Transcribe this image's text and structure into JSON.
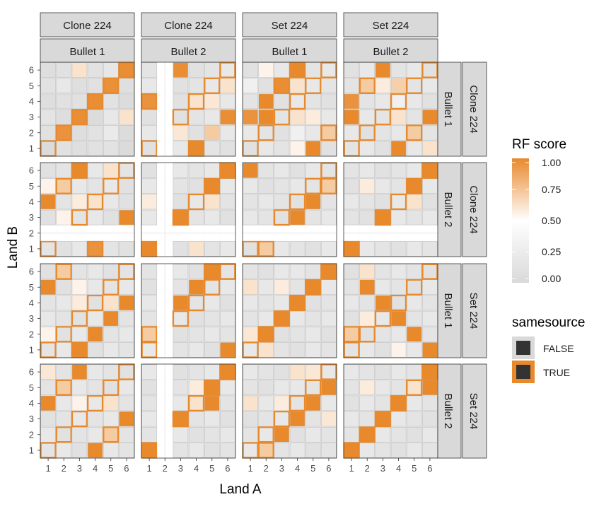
{
  "chart_data": {
    "type": "heatmap",
    "xlabel": "Land A",
    "ylabel": "Land B",
    "x_ticks": [
      "1",
      "2",
      "3",
      "4",
      "5",
      "6"
    ],
    "y_ticks": [
      "1",
      "2",
      "3",
      "4",
      "5",
      "6"
    ],
    "col_strips": [
      {
        "top": "Clone 224",
        "bottom": "Bullet 1"
      },
      {
        "top": "Clone 224",
        "bottom": "Bullet 2"
      },
      {
        "top": "Set 224",
        "bottom": "Bullet 1"
      },
      {
        "top": "Set 224",
        "bottom": "Bullet 2"
      }
    ],
    "row_strips": [
      {
        "inner": "Bullet 1",
        "outer": "Clone 224"
      },
      {
        "inner": "Bullet 2",
        "outer": "Clone 224"
      },
      {
        "inner": "Bullet 1",
        "outer": "Set 224"
      },
      {
        "inner": "Bullet 2",
        "outer": "Set 224"
      }
    ],
    "grid": true,
    "colors": {
      "low": "#d9d9d9",
      "mid": "#ffffff",
      "high": "#e8892c",
      "panel_bg": "#ebebeb",
      "strip_bg": "#d9d9d9",
      "true_outline": "#e8892c",
      "false_outline": "#bdbdbd"
    },
    "legend": {
      "position": "right",
      "fill_title": "RF score",
      "fill_labels": [
        "1.00",
        "0.75",
        "0.50",
        "0.25",
        "0.00"
      ],
      "fill_values": [
        1.0,
        0.75,
        0.5,
        0.25,
        0.0
      ],
      "samesource_title": "samesource",
      "samesource_labels": [
        "FALSE",
        "TRUE"
      ]
    },
    "panels": [
      [
        {
          "missing_x": [],
          "missing_y": [],
          "scores": [
            [
              0.02,
              0.1,
              0.08,
              0.1,
              0.12,
              0.02
            ],
            [
              0.1,
              0.96,
              0.06,
              0.12,
              0.22,
              0.04
            ],
            [
              0.14,
              0.06,
              0.98,
              0.04,
              0.2,
              0.62
            ],
            [
              0.06,
              0.1,
              0.1,
              0.98,
              0.12,
              0.04
            ],
            [
              0.12,
              0.2,
              0.08,
              0.1,
              0.97,
              0.08
            ],
            [
              0.06,
              0.1,
              0.62,
              0.12,
              0.18,
              0.98
            ]
          ],
          "same": [
            [
              1,
              1
            ],
            [
              2,
              2
            ],
            [
              3,
              3
            ],
            [
              4,
              4
            ],
            [
              5,
              5
            ],
            [
              6,
              6
            ]
          ]
        },
        {
          "missing_x": [
            2
          ],
          "missing_y": [],
          "scores": [
            [
              0.1,
              0,
              0.2,
              1.0,
              0.15,
              0.1
            ],
            [
              0.2,
              0,
              0.6,
              0.1,
              0.72,
              0.2
            ],
            [
              0.1,
              0,
              0.1,
              0.15,
              0.2,
              0.98
            ],
            [
              0.96,
              0,
              0.1,
              0.62,
              0.6,
              0.2
            ],
            [
              0.2,
              0,
              0.1,
              0.15,
              0.2,
              0.62
            ],
            [
              0.15,
              0,
              0.98,
              0.1,
              0.15,
              0.2
            ]
          ],
          "same": [
            [
              1,
              4
            ],
            [
              4,
              1
            ]
          ]
        },
        {
          "missing_x": [],
          "missing_y": [],
          "scores": [
            [
              0.1,
              0.2,
              0.15,
              0.55,
              1.0,
              0.1
            ],
            [
              0.2,
              0.15,
              0.1,
              0.3,
              0.2,
              0.72
            ],
            [
              0.96,
              1.0,
              0.15,
              0.62,
              0.58,
              0.2
            ],
            [
              0.15,
              1.0,
              0.1,
              0.2,
              0.15,
              0.1
            ],
            [
              0.3,
              0.1,
              0.98,
              0.62,
              0.2,
              0.15
            ],
            [
              0.1,
              0.55,
              0.2,
              1.0,
              0.15,
              0.2
            ]
          ],
          "same": [
            [
              3,
              5
            ],
            [
              6,
              2
            ],
            [
              4,
              6
            ]
          ]
        },
        {
          "missing_x": [],
          "missing_y": [],
          "scores": [
            [
              0.15,
              0.2,
              0.1,
              1.0,
              0.2,
              0.62
            ],
            [
              0.2,
              0.1,
              0.15,
              0.2,
              0.72,
              0.15
            ],
            [
              1.0,
              0.2,
              0.15,
              0.62,
              0.15,
              1.0
            ],
            [
              0.96,
              0.15,
              0.2,
              0.3,
              0.2,
              0.1
            ],
            [
              0.15,
              0.72,
              0.58,
              0.7,
              0.15,
              0.2
            ],
            [
              0.1,
              0.2,
              1.0,
              0.15,
              0.2,
              0.1
            ]
          ],
          "same": [
            [
              5,
              2
            ],
            [
              2,
              5
            ]
          ]
        }
      ],
      [
        {
          "missing_x": [],
          "missing_y": [
            2
          ],
          "scores": [
            [
              0.15,
              0.1,
              0.2,
              0.96,
              0.15,
              0.1
            ],
            [
              0,
              0,
              0,
              0,
              0,
              0
            ],
            [
              0.1,
              0.55,
              0.15,
              0.2,
              0.1,
              1.0
            ],
            [
              1.0,
              0.15,
              0.58,
              0.62,
              0.2,
              0.1
            ],
            [
              0.55,
              0.72,
              0.2,
              0.15,
              0.2,
              0.1
            ],
            [
              0.1,
              0.15,
              1.0,
              0.2,
              0.62,
              0.15
            ]
          ],
          "same": [
            [
              2,
              5
            ],
            [
              3,
              6
            ],
            [
              4,
              1
            ]
          ]
        },
        {
          "missing_x": [
            2
          ],
          "missing_y": [
            2
          ],
          "scores": [
            [
              1.0,
              0,
              0.1,
              0.62,
              0.15,
              0.2
            ],
            [
              0,
              0,
              0,
              0,
              0,
              0
            ],
            [
              0.2,
              0,
              1.0,
              0.15,
              0.2,
              0.1
            ],
            [
              0.58,
              0,
              0.1,
              0.2,
              0.62,
              0.15
            ],
            [
              0.2,
              0,
              0.15,
              0.1,
              1.0,
              0.2
            ],
            [
              0.1,
              0,
              0.2,
              0.15,
              0.2,
              1.0
            ]
          ],
          "same": []
        },
        {
          "missing_x": [],
          "missing_y": [
            2
          ],
          "scores": [
            [
              0.1,
              0.72,
              0.2,
              0.15,
              0.1,
              0.2
            ],
            [
              0,
              0,
              0,
              0,
              0,
              0
            ],
            [
              0.2,
              0.15,
              0.1,
              1.0,
              0.15,
              0.2
            ],
            [
              0.15,
              0.2,
              0.15,
              0.1,
              1.0,
              0.15
            ],
            [
              0.2,
              0.1,
              0.15,
              0.2,
              0.15,
              0.72
            ],
            [
              1.0,
              0.15,
              0.2,
              0.1,
              0.2,
              0.15
            ]
          ],
          "same": [
            [
              2,
              1
            ],
            [
              6,
              5
            ]
          ]
        },
        {
          "missing_x": [],
          "missing_y": [
            2
          ],
          "scores": [
            [
              1.0,
              0.2,
              0.15,
              0.1,
              0.2,
              0.15
            ],
            [
              0,
              0,
              0,
              0,
              0,
              0
            ],
            [
              0.15,
              0.1,
              1.0,
              0.2,
              0.15,
              0.2
            ],
            [
              0.2,
              0.15,
              0.1,
              0.2,
              0.62,
              0.1
            ],
            [
              0.1,
              0.58,
              0.2,
              0.15,
              1.0,
              0.2
            ],
            [
              0.15,
              0.2,
              0.1,
              0.15,
              0.2,
              1.0
            ]
          ],
          "same": []
        }
      ],
      [
        {
          "missing_x": [],
          "missing_y": [],
          "scores": [
            [
              0.15,
              0.2,
              1.0,
              0.1,
              0.2,
              0.15
            ],
            [
              0.55,
              0.1,
              0.2,
              1.0,
              0.15,
              0.2
            ],
            [
              0.2,
              0.15,
              0.1,
              0.2,
              1.0,
              0.15
            ],
            [
              0.15,
              0.2,
              0.58,
              0.1,
              0.62,
              1.0
            ],
            [
              1.0,
              0.1,
              0.55,
              0.2,
              0.15,
              0.2
            ],
            [
              0.1,
              0.72,
              0.15,
              0.2,
              0.1,
              0.15
            ]
          ],
          "same": [
            [
              2,
              6
            ],
            [
              3,
              1
            ]
          ]
        },
        {
          "missing_x": [
            2
          ],
          "missing_y": [],
          "scores": [
            [
              0.2,
              0,
              0.15,
              0.2,
              0.1,
              1.0
            ],
            [
              0.72,
              0,
              0.1,
              0.15,
              0.2,
              0.15
            ],
            [
              0.15,
              0,
              0.2,
              0.1,
              0.15,
              0.2
            ],
            [
              0.2,
              0,
              1.0,
              0.15,
              0.2,
              0.1
            ],
            [
              0.1,
              0,
              0.15,
              1.0,
              0.15,
              0.2
            ],
            [
              0.15,
              0,
              0.2,
              0.1,
              1.0,
              0.15
            ]
          ],
          "same": [
            [
              1,
              2
            ],
            [
              5,
              6
            ]
          ]
        },
        {
          "missing_x": [],
          "missing_y": [],
          "scores": [
            [
              0.2,
              0.62,
              0.15,
              0.1,
              0.2,
              0.15
            ],
            [
              0.6,
              1.0,
              0.1,
              0.15,
              0.2,
              0.1
            ],
            [
              0.15,
              0.2,
              1.0,
              0.2,
              0.15,
              0.2
            ],
            [
              0.2,
              0.15,
              0.2,
              1.0,
              0.1,
              0.15
            ],
            [
              0.62,
              0.2,
              0.58,
              0.15,
              1.0,
              0.2
            ],
            [
              0.15,
              0.1,
              0.2,
              0.2,
              0.15,
              1.0
            ]
          ],
          "same": []
        },
        {
          "missing_x": [],
          "missing_y": [],
          "scores": [
            [
              0.15,
              0.2,
              0.1,
              0.55,
              0.2,
              1.0
            ],
            [
              0.72,
              0.1,
              0.15,
              0.2,
              1.0,
              0.15
            ],
            [
              0.1,
              0.58,
              0.2,
              1.0,
              0.15,
              0.2
            ],
            [
              0.2,
              0.15,
              1.0,
              0.1,
              0.2,
              0.15
            ],
            [
              0.15,
              1.0,
              0.2,
              0.15,
              0.1,
              0.2
            ],
            [
              0.1,
              0.62,
              0.15,
              0.2,
              0.15,
              0.1
            ]
          ],
          "same": [
            [
              1,
              2
            ]
          ]
        }
      ],
      [
        {
          "missing_x": [],
          "missing_y": [],
          "scores": [
            [
              0.15,
              0.2,
              0.1,
              1.0,
              0.2,
              0.15
            ],
            [
              0.2,
              0.1,
              0.15,
              0.2,
              0.72,
              0.15
            ],
            [
              0.1,
              0.15,
              0.2,
              0.15,
              0.2,
              1.0
            ],
            [
              1.0,
              0.2,
              0.55,
              0.2,
              0.62,
              0.15
            ],
            [
              0.15,
              0.72,
              0.2,
              0.15,
              0.1,
              0.2
            ],
            [
              0.6,
              0.15,
              1.0,
              0.2,
              0.15,
              0.1
            ]
          ],
          "same": [
            [
              2,
              5
            ],
            [
              5,
              2
            ]
          ]
        },
        {
          "missing_x": [
            2
          ],
          "missing_y": [],
          "scores": [
            [
              1.0,
              0,
              0.15,
              0.2,
              0.1,
              0.15
            ],
            [
              0.15,
              0,
              0.2,
              0.1,
              0.15,
              0.2
            ],
            [
              0.2,
              0,
              1.0,
              0.15,
              0.2,
              0.1
            ],
            [
              0.15,
              0,
              0.2,
              0.62,
              1.0,
              0.15
            ],
            [
              0.1,
              0,
              0.15,
              0.58,
              1.0,
              0.2
            ],
            [
              0.2,
              0,
              0.1,
              0.15,
              0.2,
              1.0
            ]
          ],
          "same": []
        },
        {
          "missing_x": [],
          "missing_y": [],
          "scores": [
            [
              0.2,
              0.72,
              0.15,
              0.2,
              0.1,
              0.15
            ],
            [
              0.15,
              0.2,
              1.0,
              0.1,
              0.2,
              0.15
            ],
            [
              0.1,
              0.15,
              0.2,
              1.0,
              0.15,
              0.6
            ],
            [
              0.62,
              0.2,
              0.58,
              0.15,
              1.0,
              0.2
            ],
            [
              0.15,
              0.1,
              0.2,
              0.2,
              0.15,
              1.0
            ],
            [
              0.2,
              0.15,
              0.1,
              0.62,
              0.6,
              0.2
            ]
          ],
          "same": [
            [
              2,
              1
            ]
          ]
        },
        {
          "missing_x": [],
          "missing_y": [],
          "scores": [
            [
              1.0,
              0.2,
              0.15,
              0.1,
              0.2,
              0.15
            ],
            [
              0.15,
              1.0,
              0.2,
              0.15,
              0.1,
              0.2
            ],
            [
              0.2,
              0.15,
              1.0,
              0.2,
              0.15,
              0.1
            ],
            [
              0.1,
              0.2,
              0.15,
              1.0,
              0.2,
              0.15
            ],
            [
              0.15,
              0.58,
              0.2,
              0.15,
              0.62,
              1.0
            ],
            [
              0.2,
              0.15,
              0.1,
              0.2,
              0.15,
              1.0
            ]
          ],
          "same": []
        }
      ]
    ]
  }
}
